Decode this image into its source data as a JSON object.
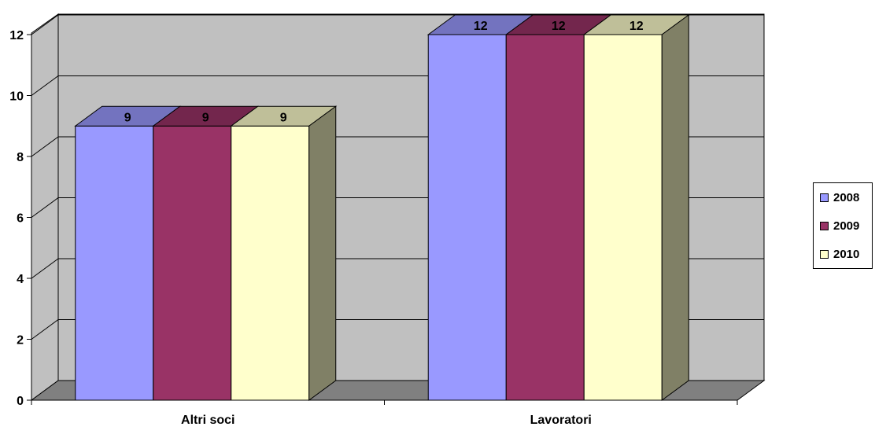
{
  "chart_data": {
    "type": "bar",
    "title": "",
    "xlabel": "",
    "ylabel": "",
    "categories": [
      "Altri soci",
      "Lavoratori"
    ],
    "series": [
      {
        "name": "2008",
        "values": [
          9,
          12
        ]
      },
      {
        "name": "2009",
        "values": [
          9,
          12
        ]
      },
      {
        "name": "2010",
        "values": [
          9,
          12
        ]
      }
    ],
    "ylim": [
      0,
      12
    ],
    "yticks": [
      "0",
      "2",
      "4",
      "6",
      "8",
      "10",
      "12"
    ],
    "data_labels": [
      [
        "9",
        "12"
      ],
      [
        "9",
        "12"
      ],
      [
        "9",
        "12"
      ]
    ],
    "legend_position": "right",
    "grid": true,
    "style": "3d-clustered-column",
    "colors": {
      "series": [
        "#9999ff",
        "#993366",
        "#ffffcc"
      ],
      "series_top": [
        "#7373bf",
        "#73264d",
        "#bfbf99"
      ],
      "series_side": [
        "#8080c0",
        "#7f2a55",
        "#808066"
      ],
      "wall": "#c0c0c0",
      "floor": "#808080"
    }
  }
}
